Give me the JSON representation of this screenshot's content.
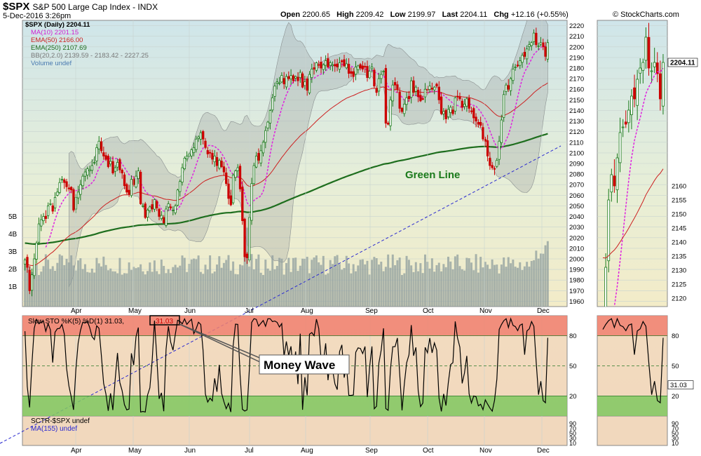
{
  "header": {
    "symbol": "$SPX",
    "name": "S&P 500 Large Cap Index",
    "exchange": "INDX",
    "datetime": "5-Dec-2016 3:26pm",
    "open_label": "Open",
    "open": "2200.65",
    "high_label": "High",
    "high": "2209.42",
    "low_label": "Low",
    "low": "2199.97",
    "last_label": "Last",
    "last": "2204.11",
    "chg_label": "Chg",
    "chg": "+12.16 (+0.55%)",
    "credit": "© StockCharts.com"
  },
  "legend": {
    "price": "$SPX (Daily) 2204.11",
    "ma10": "MA(10) 2201.15",
    "ema50": "EMA(50) 2166.00",
    "ema250": "EMA(250) 2107.69",
    "bb": "BB(20,2.0) 2139.59 - 2183.42 - 2227.25",
    "volume": "Volume undef",
    "sto": "Slow STO %K(5) %D(1) 31.03,",
    "sto_val": "31.03",
    "sctr": "SCTR-$SPX undef",
    "sctr_ma": "MA(155) undef"
  },
  "annotations": {
    "green_line": "Green Line",
    "money_wave": "Money Wave"
  },
  "colors": {
    "up": "#1a7a1a",
    "down": "#cc0000",
    "ma10": "#e020e0",
    "ema50": "#cc2020",
    "ema250": "#1e6e1e",
    "bb_fill": "#9aa0a0",
    "volume": "#8f9e9e",
    "trend": "#2a2ad0",
    "sto_line": "#000000",
    "overbought": "#f08070",
    "oversold": "#80c860"
  },
  "chart_data": [
    {
      "type": "candlestick",
      "title": "$SPX (Daily)",
      "ylim": [
        1955,
        2225
      ],
      "y_ticks": [
        1960,
        1970,
        1980,
        1990,
        2000,
        2010,
        2020,
        2030,
        2040,
        2050,
        2060,
        2070,
        2080,
        2090,
        2100,
        2110,
        2120,
        2130,
        2140,
        2150,
        2160,
        2170,
        2180,
        2190,
        2200,
        2210,
        2220
      ],
      "x_labels": [
        "Apr",
        "May",
        "Jun",
        "Jul",
        "Aug",
        "Sep",
        "Oct",
        "Nov",
        "Dec"
      ],
      "volume_ticks": [
        "1B",
        "2B",
        "3B",
        "4B",
        "5B"
      ],
      "closes": [
        1999,
        1992,
        1970,
        1985,
        2000,
        2015,
        2033,
        2037,
        2040,
        2038,
        2050,
        2052,
        2045,
        2058,
        2063,
        2072,
        2075,
        2072,
        2068,
        2066,
        2065,
        2046,
        2058,
        2063,
        2070,
        2078,
        2082,
        2085,
        2084,
        2088,
        2091,
        2105,
        2111,
        2102,
        2097,
        2094,
        2087,
        2092,
        2081,
        2086,
        2091,
        2084,
        2081,
        2069,
        2063,
        2061,
        2075,
        2070,
        2078,
        2083,
        2052,
        2050,
        2039,
        2046,
        2049,
        2047,
        2056,
        2048,
        2040,
        2041,
        2034,
        2047,
        2052,
        2048,
        2046,
        2050,
        2065,
        2073,
        2086,
        2095,
        2097,
        2099,
        2103,
        2105,
        2113,
        2115,
        2119,
        2113,
        2105,
        2099,
        2100,
        2094,
        2097,
        2088,
        2093,
        2087,
        2082,
        2071,
        2057,
        2051,
        2079,
        2083,
        2086,
        2066,
        2036,
        2002,
        2001,
        2039,
        2071,
        2088,
        2097,
        2093,
        2102,
        2110,
        2121,
        2129,
        2140,
        2152,
        2163,
        2167,
        2166,
        2173,
        2165,
        2172,
        2170,
        2173,
        2168,
        2172,
        2168,
        2176,
        2162,
        2167,
        2159,
        2174,
        2179,
        2179,
        2185,
        2183,
        2180,
        2183,
        2187,
        2181,
        2185,
        2183,
        2182,
        2181,
        2185,
        2186,
        2182,
        2184,
        2175,
        2175,
        2172,
        2181,
        2182,
        2180,
        2179,
        2181,
        2171,
        2177,
        2181,
        2163,
        2157,
        2170,
        2174,
        2177,
        2128,
        2127,
        2150,
        2164,
        2164,
        2160,
        2142,
        2139,
        2146,
        2152,
        2151,
        2168,
        2157,
        2162,
        2153,
        2149,
        2151,
        2160,
        2159,
        2163,
        2160,
        2162,
        2163,
        2150,
        2137,
        2139,
        2132,
        2141,
        2143,
        2137,
        2152,
        2153,
        2151,
        2143,
        2146,
        2151,
        2142,
        2139,
        2133,
        2130,
        2127,
        2126,
        2113,
        2111,
        2097,
        2088,
        2086,
        2085,
        2093,
        2111,
        2131,
        2155,
        2164,
        2160,
        2170,
        2179,
        2181,
        2182,
        2187,
        2192,
        2191,
        2198,
        2202,
        2204,
        2213,
        2202,
        2201,
        2204,
        2200,
        2191,
        2204
      ]
    },
    {
      "type": "line",
      "title": "Slow STO %K(5) %D(1)",
      "ylim": [
        0,
        100
      ],
      "y_ticks": [
        20,
        50,
        80
      ],
      "overbought": 80,
      "oversold": 20,
      "last": 31.03
    },
    {
      "type": "line",
      "title": "SCTR-$SPX",
      "y_ticks": [
        10,
        30,
        50,
        70,
        90
      ]
    }
  ]
}
